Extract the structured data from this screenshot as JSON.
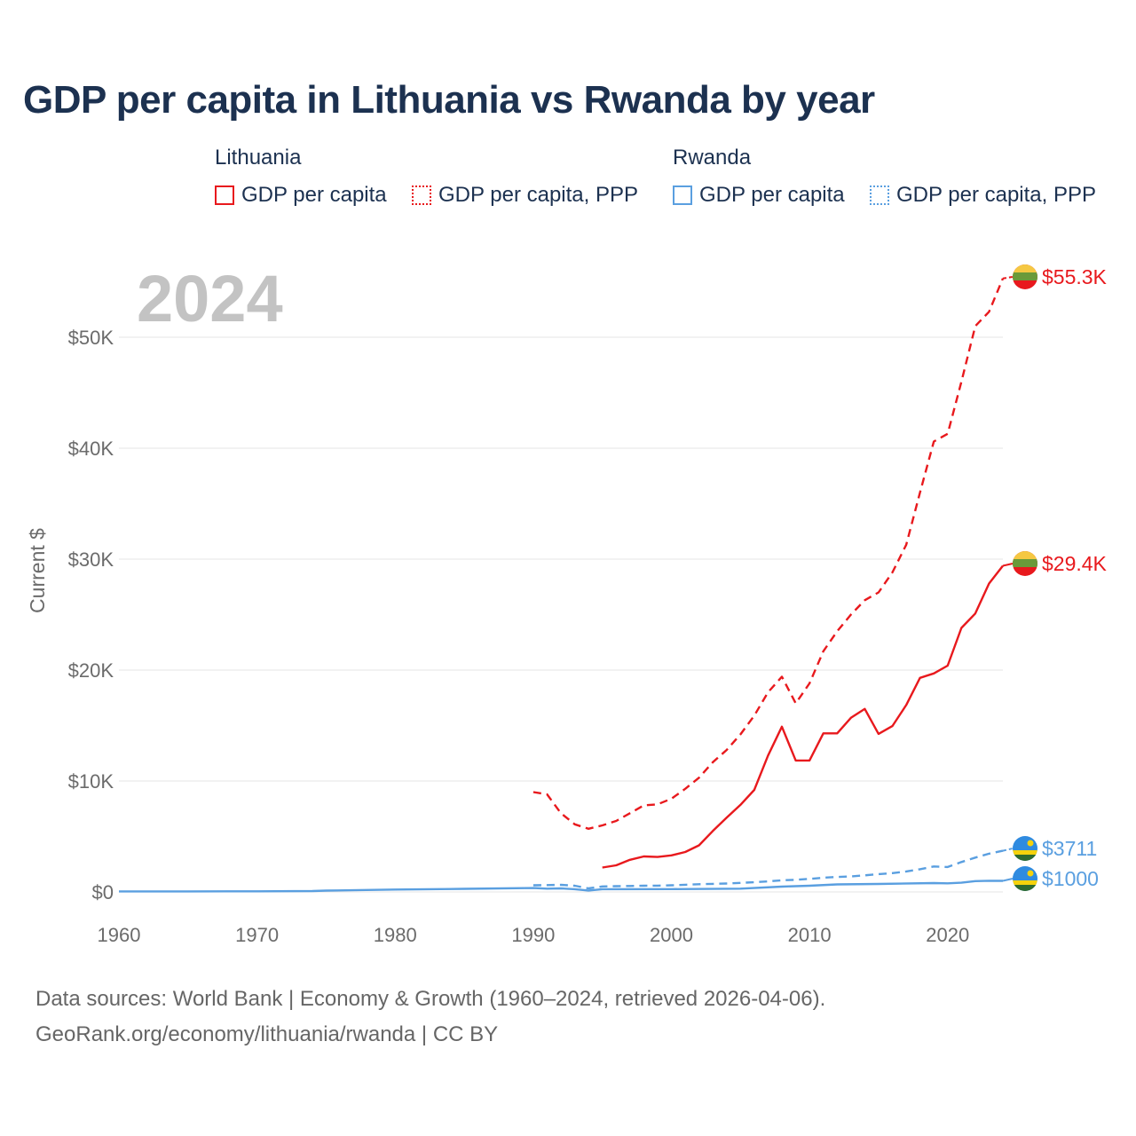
{
  "title": "GDP per capita in Lithuania vs Rwanda by year",
  "legend": {
    "groups": [
      {
        "country": "Lithuania",
        "items": [
          "GDP per capita",
          "GDP per capita, PPP"
        ],
        "color": "#e8191d"
      },
      {
        "country": "Rwanda",
        "items": [
          "GDP per capita",
          "GDP per capita, PPP"
        ],
        "color": "#5a9fe0"
      }
    ]
  },
  "year_label": "2024",
  "source_line1": "Data sources: World Bank | Economy & Growth (1960–2024, retrieved 2026-04-06).",
  "source_line2": "GeoRank.org/economy/lithuania/rwanda | CC BY",
  "chart_data": {
    "type": "line",
    "title": "GDP per capita in Lithuania vs Rwanda by year",
    "ylabel": "Current $",
    "xlabel": "",
    "xlim": [
      1960,
      2024
    ],
    "ylim": [
      0,
      55300
    ],
    "x_ticks": [
      1960,
      1970,
      1980,
      1990,
      2000,
      2010,
      2020
    ],
    "y_ticks": [
      0,
      10000,
      20000,
      30000,
      40000,
      50000
    ],
    "y_tick_labels": [
      "$0",
      "$10K",
      "$20K",
      "$30K",
      "$40K",
      "$50K"
    ],
    "grid": true,
    "series": [
      {
        "name": "Lithuania GDP per capita, PPP",
        "country": "Lithuania",
        "style": "dashed",
        "color": "#e8191d",
        "end_label": "$55.3K",
        "x": [
          1990,
          1991,
          1992,
          1993,
          1994,
          1995,
          1996,
          1997,
          1998,
          1999,
          2000,
          2001,
          2002,
          2003,
          2004,
          2005,
          2006,
          2007,
          2008,
          2009,
          2010,
          2011,
          2012,
          2013,
          2014,
          2015,
          2016,
          2017,
          2018,
          2019,
          2020,
          2021,
          2022,
          2023,
          2024
        ],
        "values": [
          9000,
          8800,
          7100,
          6100,
          5700,
          6000,
          6400,
          7100,
          7800,
          7900,
          8400,
          9300,
          10300,
          11700,
          12800,
          14200,
          15900,
          18000,
          19400,
          17000,
          18800,
          21700,
          23500,
          25000,
          26300,
          27000,
          28800,
          31300,
          36000,
          40600,
          41300,
          46000,
          51000,
          52300,
          55300
        ]
      },
      {
        "name": "Lithuania GDP per capita",
        "country": "Lithuania",
        "style": "solid",
        "color": "#e8191d",
        "end_label": "$29.4K",
        "x": [
          1995,
          1996,
          1997,
          1998,
          1999,
          2000,
          2001,
          2002,
          2003,
          2004,
          2005,
          2006,
          2007,
          2008,
          2009,
          2010,
          2011,
          2012,
          2013,
          2014,
          2015,
          2016,
          2017,
          2018,
          2019,
          2020,
          2021,
          2022,
          2023,
          2024
        ],
        "values": [
          2200,
          2400,
          2900,
          3200,
          3150,
          3300,
          3600,
          4200,
          5500,
          6700,
          7850,
          9200,
          12300,
          14900,
          11850,
          11850,
          14300,
          14300,
          15700,
          16500,
          14250,
          14950,
          16850,
          19300,
          19700,
          20400,
          23800,
          25100,
          27800,
          29400
        ]
      },
      {
        "name": "Rwanda GDP per capita, PPP",
        "country": "Rwanda",
        "style": "dashed",
        "color": "#5a9fe0",
        "end_label": "$3711",
        "x": [
          1990,
          1991,
          1992,
          1993,
          1994,
          1995,
          1996,
          1997,
          1998,
          1999,
          2000,
          2001,
          2002,
          2003,
          2004,
          2005,
          2006,
          2007,
          2008,
          2009,
          2010,
          2011,
          2012,
          2013,
          2014,
          2015,
          2016,
          2017,
          2018,
          2019,
          2020,
          2021,
          2022,
          2023,
          2024
        ],
        "values": [
          600,
          620,
          640,
          560,
          320,
          500,
          520,
          540,
          560,
          570,
          600,
          650,
          700,
          730,
          760,
          820,
          880,
          950,
          1050,
          1100,
          1180,
          1280,
          1350,
          1400,
          1500,
          1600,
          1700,
          1850,
          2050,
          2300,
          2250,
          2700,
          3100,
          3450,
          3711
        ]
      },
      {
        "name": "Rwanda GDP per capita",
        "country": "Rwanda",
        "style": "solid",
        "color": "#5a9fe0",
        "end_label": "$1000",
        "x": [
          1960,
          1965,
          1970,
          1974,
          1975,
          1980,
          1985,
          1990,
          1991,
          1992,
          1993,
          1994,
          1995,
          2000,
          2005,
          2008,
          2010,
          2012,
          2015,
          2019,
          2020,
          2021,
          2022,
          2023,
          2024
        ],
        "values": [
          50,
          50,
          60,
          80,
          120,
          220,
          280,
          350,
          300,
          320,
          250,
          130,
          250,
          260,
          300,
          480,
          560,
          680,
          720,
          800,
          780,
          830,
          980,
          1010,
          1000
        ]
      }
    ]
  }
}
